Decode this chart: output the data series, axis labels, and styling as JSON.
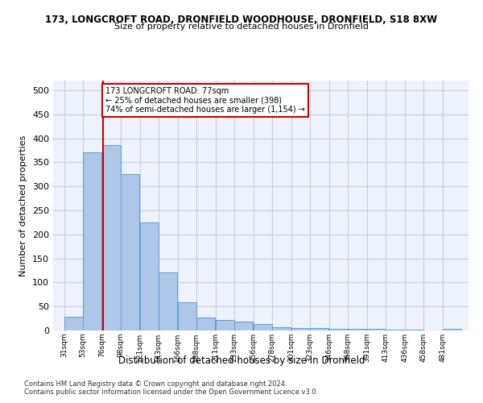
{
  "title1": "173, LONGCROFT ROAD, DRONFIELD WOODHOUSE, DRONFIELD, S18 8XW",
  "title2": "Size of property relative to detached houses in Dronfield",
  "xlabel": "Distribution of detached houses by size in Dronfield",
  "ylabel": "Number of detached properties",
  "footer1": "Contains HM Land Registry data © Crown copyright and database right 2024.",
  "footer2": "Contains public sector information licensed under the Open Government Licence v3.0.",
  "annotation_title": "173 LONGCROFT ROAD: 77sqm",
  "annotation_line1": "← 25% of detached houses are smaller (398)",
  "annotation_line2": "74% of semi-detached houses are larger (1,154) →",
  "property_size_sqm": 77,
  "bar_edges": [
    31,
    53,
    76,
    98,
    121,
    143,
    166,
    188,
    211,
    233,
    256,
    278,
    301,
    323,
    346,
    368,
    391,
    413,
    436,
    458,
    481
  ],
  "bar_heights": [
    28,
    370,
    385,
    325,
    225,
    120,
    58,
    27,
    22,
    18,
    14,
    7,
    5,
    5,
    4,
    3,
    4,
    1,
    1,
    0,
    4
  ],
  "bar_color": "#aec6e8",
  "bar_edge_color": "#5a9fd4",
  "marker_line_color": "#cc0000",
  "annotation_box_color": "#cc0000",
  "grid_color": "#c8d0e0",
  "background_color": "#eef2fb",
  "ylim": [
    0,
    520
  ],
  "yticks": [
    0,
    50,
    100,
    150,
    200,
    250,
    300,
    350,
    400,
    450,
    500
  ]
}
